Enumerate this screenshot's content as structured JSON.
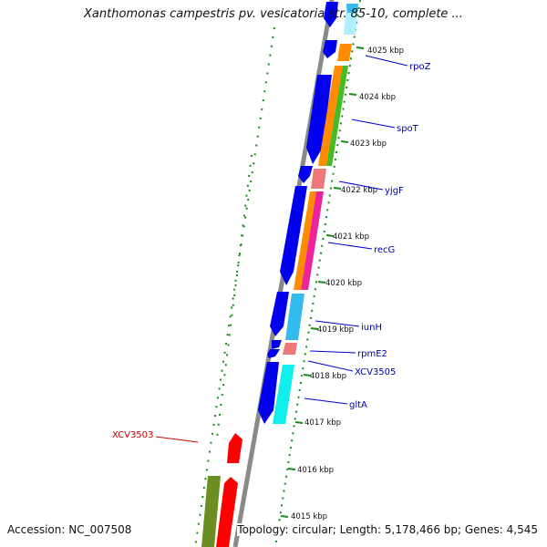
{
  "title": "Xanthomonas campestris pv. vesicatoria str. 85-10, complete ...",
  "footer": {
    "accession": "Accession: NC_007508",
    "summary": "Topology: circular; Length: 5,178,466 bp; Genes: 4,545"
  },
  "colors": {
    "label_blue": "#0000aa",
    "label_red": "#cc0000",
    "backbone": "#888888",
    "dotted_ring": "#1a8a1a",
    "tick": "#1a8a1a",
    "gene_blue": "#0000ee",
    "gene_orange": "#ff8c00",
    "gene_green": "#44bb22",
    "gene_pink": "#ee7777",
    "gene_magenta": "#ee2299",
    "gene_skyblue": "#33bbee",
    "gene_cyan": "#11eeee",
    "gene_red": "#ff0000",
    "gene_olive": "#6b8e23"
  },
  "scale": {
    "ticks": [
      "4025 kbp",
      "4024 kbp",
      "4023 kbp",
      "4022 kbp",
      "4021 kbp",
      "4020 kbp",
      "4019 kbp",
      "4018 kbp",
      "4017 kbp",
      "4016 kbp",
      "4015 kbp"
    ]
  },
  "gene_labels": [
    {
      "text": "rpoZ",
      "color": "label_blue"
    },
    {
      "text": "spoT",
      "color": "label_blue"
    },
    {
      "text": "yjgF",
      "color": "label_blue"
    },
    {
      "text": "recG",
      "color": "label_blue"
    },
    {
      "text": "iunH",
      "color": "label_blue"
    },
    {
      "text": "rpmE2",
      "color": "label_blue"
    },
    {
      "text": "XCV3505",
      "color": "label_blue"
    },
    {
      "text": "gltA",
      "color": "label_blue"
    },
    {
      "text": "XCV3503",
      "color": "label_red"
    }
  ]
}
